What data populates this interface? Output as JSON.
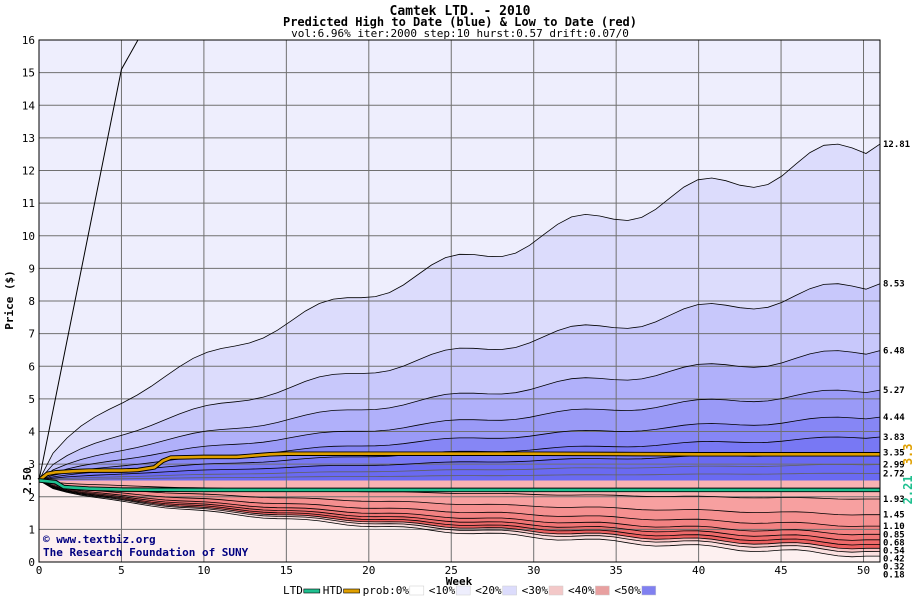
{
  "chart_data": {
    "type": "area",
    "title": "Camtek LTD. - 2010",
    "subtitle": "Predicted High to Date (blue) &  Low to Date (red)",
    "params": "vol:6.96% iter:2000 step:10 hurst:0.57 drift:0.07/0",
    "xlabel": "Week",
    "ylabel": "Price ($)",
    "xlim": [
      0,
      51
    ],
    "ylim": [
      0,
      16
    ],
    "xticks": [
      0,
      5,
      10,
      15,
      20,
      25,
      30,
      35,
      40,
      45,
      50
    ],
    "yticks": [
      0,
      1,
      2,
      3,
      4,
      5,
      6,
      7,
      8,
      9,
      10,
      11,
      12,
      13,
      14,
      15,
      16
    ],
    "grid": true,
    "start_price": 2.5,
    "start_label": "2.50",
    "high_quantiles": [
      {
        "end": 3.35,
        "label": "3.35",
        "fill": "#6a6af2"
      },
      {
        "end": 3.83,
        "label": "3.83",
        "fill": "#7878f4"
      },
      {
        "end": 4.44,
        "label": "4.44",
        "fill": "#8686f5"
      },
      {
        "end": 5.27,
        "label": "5.27",
        "fill": "#9a9af7"
      },
      {
        "end": 6.48,
        "label": "6.48",
        "fill": "#b0b0fa"
      },
      {
        "end": 8.53,
        "label": "8.53",
        "fill": "#c8c8fb"
      },
      {
        "end": 12.81,
        "label": "12.81",
        "fill": "#dcdcfc"
      }
    ],
    "high_outer_line": {
      "x": [
        0,
        5,
        6
      ],
      "y": [
        2.5,
        15.1,
        16
      ]
    },
    "high_outer_fill": "#eeeefd",
    "low_quantiles": [
      {
        "end": 1.93,
        "label": "1.93",
        "fill": "#f9b3b3"
      },
      {
        "end": 1.45,
        "label": "1.45",
        "fill": "#f7a0a0"
      },
      {
        "end": 1.1,
        "label": "1.10",
        "fill": "#f59090"
      },
      {
        "end": 0.85,
        "label": "0.85",
        "fill": "#f38282"
      },
      {
        "end": 0.68,
        "label": "0.68",
        "fill": "#f17575"
      },
      {
        "end": 0.54,
        "label": "0.54",
        "fill": "#ee6a6a"
      },
      {
        "end": 0.42,
        "label": "0.42",
        "fill": "#ec6060"
      },
      {
        "end": 0.32,
        "label": "0.32",
        "fill": "#f7c4c4"
      },
      {
        "end": 0.18,
        "label": "0.18",
        "fill": "#fbe0e0"
      }
    ],
    "low_outer_fill": "#fdf0f0",
    "gray_lines": [
      {
        "end": 2.99,
        "label": "2.99"
      },
      {
        "end": 2.72,
        "label": "2.72"
      }
    ],
    "htd_series": {
      "name": "HTD",
      "color": "#e0a000",
      "x": [
        0,
        0.5,
        1,
        2,
        3,
        5,
        6,
        7,
        7.5,
        8,
        10,
        12,
        14,
        15,
        20,
        25,
        30,
        35,
        40,
        45,
        51
      ],
      "y": [
        2.5,
        2.7,
        2.75,
        2.78,
        2.8,
        2.8,
        2.82,
        2.9,
        3.1,
        3.2,
        3.22,
        3.22,
        3.3,
        3.32,
        3.32,
        3.32,
        3.32,
        3.31,
        3.3,
        3.3,
        3.3
      ],
      "end_label": "3.3"
    },
    "ltd_series": {
      "name": "LTD",
      "color": "#20c090",
      "x": [
        0,
        1,
        1.5,
        2,
        3,
        5,
        10,
        15,
        20,
        30,
        40,
        51
      ],
      "y": [
        2.5,
        2.45,
        2.3,
        2.28,
        2.25,
        2.22,
        2.21,
        2.21,
        2.21,
        2.21,
        2.21,
        2.21
      ],
      "end_label": "2.21"
    },
    "legend": [
      {
        "label": "LTD",
        "color": "#20c090",
        "kind": "line"
      },
      {
        "label": "HTD",
        "color": "#e0a000",
        "kind": "line"
      },
      {
        "label": "prob:0%",
        "color": "#ffffff",
        "kind": "box"
      },
      {
        "label": "<10%",
        "color": "#eeeefd",
        "kind": "box"
      },
      {
        "label": "<20%",
        "color": "#dcdcfc",
        "kind": "box"
      },
      {
        "label": "<30%",
        "color": "#f3c8c8",
        "kind": "box"
      },
      {
        "label": "<40%",
        "color": "#e8a0a0",
        "kind": "box"
      },
      {
        "label": "<50%",
        "color": "#8080f0",
        "kind": "box"
      }
    ],
    "legend_placement": "bottom"
  },
  "credit": {
    "line1": "© www.textbiz.org",
    "line2": "The Research Foundation of SUNY"
  }
}
